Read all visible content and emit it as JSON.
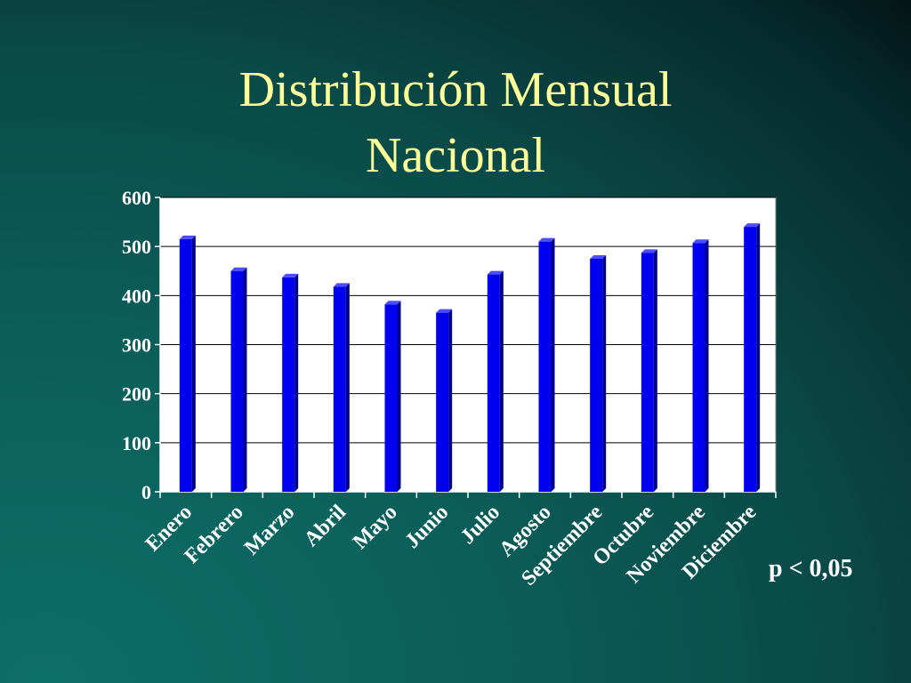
{
  "chart_data": {
    "type": "bar",
    "title_lines": [
      "Distribución Mensual",
      "Nacional"
    ],
    "categories": [
      "Enero",
      "Febrero",
      "Marzo",
      "Abril",
      "Mayo",
      "Junio",
      "Julio",
      "Agosto",
      "Septiembre",
      "Octubre",
      "Noviembre",
      "Diciembre"
    ],
    "values": [
      515,
      450,
      437,
      418,
      382,
      365,
      443,
      510,
      475,
      487,
      507,
      540
    ],
    "ylim": [
      0,
      600
    ],
    "yticks": [
      "0",
      "100",
      "200",
      "300",
      "400",
      "500",
      "600"
    ],
    "grid": true,
    "bar_color": "#0000ee",
    "plot_background": "#ffffff",
    "highlighted_category": "Octubre",
    "annotation": "p < 0,05",
    "marker_icon": "star-icon"
  }
}
